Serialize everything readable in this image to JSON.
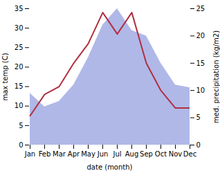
{
  "chart_data": {
    "type": "line",
    "categories": [
      "Jan",
      "Feb",
      "Mar",
      "Apr",
      "May",
      "Jun",
      "Jul",
      "Aug",
      "Sep",
      "Oct",
      "Nov",
      "Dec"
    ],
    "xlabel": "date (month)",
    "ylabel": "max temp (C)",
    "y2label": "med. precipitation (kg/m2)",
    "ylim": [
      0,
      35
    ],
    "yticks": [
      0,
      5,
      10,
      15,
      20,
      25,
      30,
      35
    ],
    "y2lim": [
      0,
      25
    ],
    "y2ticks": [
      0,
      5,
      10,
      15,
      20,
      25
    ],
    "grid": false,
    "series": [
      {
        "type": "area",
        "axis": "y2",
        "color": "#b0b8e8",
        "values": [
          9.5,
          7.0,
          8.0,
          11.0,
          16.0,
          22.0,
          25.0,
          21.0,
          20.0,
          15.0,
          11.0,
          10.5
        ]
      },
      {
        "type": "line",
        "color": "#b03040",
        "values": [
          7.5,
          13.0,
          15.0,
          21.0,
          26.0,
          34.0,
          28.5,
          34.0,
          21.0,
          14.0,
          9.5,
          9.5
        ]
      }
    ]
  }
}
